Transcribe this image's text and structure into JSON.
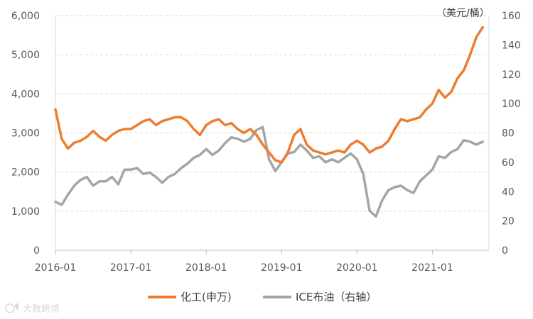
{
  "chart_data": {
    "type": "line",
    "title": "",
    "right_axis_unit": "（美元/桶）",
    "x_ticks": [
      "2016-01",
      "2017-01",
      "2018-01",
      "2019-01",
      "2020-01",
      "2021-01"
    ],
    "x_range": [
      "2016-01",
      "2021-09"
    ],
    "y_left": {
      "min": 0,
      "max": 6000,
      "ticks": [
        "0",
        "1,000",
        "2,000",
        "3,000",
        "4,000",
        "5,000",
        "6,000"
      ]
    },
    "y_right": {
      "min": 0,
      "max": 160,
      "ticks": [
        "0",
        "20",
        "40",
        "60",
        "80",
        "100",
        "120",
        "140",
        "160"
      ]
    },
    "grid": "horizontal",
    "legend_position": "bottom",
    "series": [
      {
        "name": "化工(申万)",
        "axis": "left",
        "color": "#ED7D31",
        "points": [
          [
            "2016-01",
            3600
          ],
          [
            "2016-02",
            2850
          ],
          [
            "2016-03",
            2600
          ],
          [
            "2016-04",
            2750
          ],
          [
            "2016-05",
            2800
          ],
          [
            "2016-06",
            2900
          ],
          [
            "2016-07",
            3050
          ],
          [
            "2016-08",
            2900
          ],
          [
            "2016-09",
            2800
          ],
          [
            "2016-10",
            2950
          ],
          [
            "2016-11",
            3050
          ],
          [
            "2016-12",
            3100
          ],
          [
            "2017-01",
            3100
          ],
          [
            "2017-02",
            3200
          ],
          [
            "2017-03",
            3300
          ],
          [
            "2017-04",
            3350
          ],
          [
            "2017-05",
            3200
          ],
          [
            "2017-06",
            3300
          ],
          [
            "2017-07",
            3350
          ],
          [
            "2017-08",
            3400
          ],
          [
            "2017-09",
            3400
          ],
          [
            "2017-10",
            3300
          ],
          [
            "2017-11",
            3100
          ],
          [
            "2017-12",
            2950
          ],
          [
            "2018-01",
            3200
          ],
          [
            "2018-02",
            3300
          ],
          [
            "2018-03",
            3350
          ],
          [
            "2018-04",
            3200
          ],
          [
            "2018-05",
            3250
          ],
          [
            "2018-06",
            3100
          ],
          [
            "2018-07",
            3000
          ],
          [
            "2018-08",
            3100
          ],
          [
            "2018-09",
            2950
          ],
          [
            "2018-10",
            2700
          ],
          [
            "2018-11",
            2500
          ],
          [
            "2018-12",
            2300
          ],
          [
            "2019-01",
            2250
          ],
          [
            "2019-02",
            2500
          ],
          [
            "2019-03",
            2950
          ],
          [
            "2019-04",
            3100
          ],
          [
            "2019-05",
            2700
          ],
          [
            "2019-06",
            2550
          ],
          [
            "2019-07",
            2500
          ],
          [
            "2019-08",
            2450
          ],
          [
            "2019-09",
            2500
          ],
          [
            "2019-10",
            2550
          ],
          [
            "2019-11",
            2500
          ],
          [
            "2019-12",
            2700
          ],
          [
            "2020-01",
            2800
          ],
          [
            "2020-02",
            2700
          ],
          [
            "2020-03",
            2500
          ],
          [
            "2020-04",
            2600
          ],
          [
            "2020-05",
            2650
          ],
          [
            "2020-06",
            2800
          ],
          [
            "2020-07",
            3100
          ],
          [
            "2020-08",
            3350
          ],
          [
            "2020-09",
            3300
          ],
          [
            "2020-10",
            3350
          ],
          [
            "2020-11",
            3400
          ],
          [
            "2020-12",
            3600
          ],
          [
            "2021-01",
            3750
          ],
          [
            "2021-02",
            4100
          ],
          [
            "2021-03",
            3900
          ],
          [
            "2021-04",
            4050
          ],
          [
            "2021-05",
            4400
          ],
          [
            "2021-06",
            4600
          ],
          [
            "2021-07",
            5000
          ],
          [
            "2021-08",
            5450
          ],
          [
            "2021-09",
            5700
          ]
        ]
      },
      {
        "name": "ICE布油（右轴）",
        "axis": "right",
        "color": "#A5A5A5",
        "points": [
          [
            "2016-01",
            33
          ],
          [
            "2016-02",
            31
          ],
          [
            "2016-03",
            38
          ],
          [
            "2016-04",
            44
          ],
          [
            "2016-05",
            48
          ],
          [
            "2016-06",
            50
          ],
          [
            "2016-07",
            44
          ],
          [
            "2016-08",
            47
          ],
          [
            "2016-09",
            47
          ],
          [
            "2016-10",
            50
          ],
          [
            "2016-11",
            45
          ],
          [
            "2016-12",
            55
          ],
          [
            "2017-01",
            55
          ],
          [
            "2017-02",
            56
          ],
          [
            "2017-03",
            52
          ],
          [
            "2017-04",
            53
          ],
          [
            "2017-05",
            50
          ],
          [
            "2017-06",
            46
          ],
          [
            "2017-07",
            50
          ],
          [
            "2017-08",
            52
          ],
          [
            "2017-09",
            56
          ],
          [
            "2017-10",
            59
          ],
          [
            "2017-11",
            63
          ],
          [
            "2017-12",
            65
          ],
          [
            "2018-01",
            69
          ],
          [
            "2018-02",
            65
          ],
          [
            "2018-03",
            68
          ],
          [
            "2018-04",
            73
          ],
          [
            "2018-05",
            77
          ],
          [
            "2018-06",
            76
          ],
          [
            "2018-07",
            74
          ],
          [
            "2018-08",
            76
          ],
          [
            "2018-09",
            82
          ],
          [
            "2018-10",
            84
          ],
          [
            "2018-11",
            62
          ],
          [
            "2018-12",
            54
          ],
          [
            "2019-01",
            60
          ],
          [
            "2019-02",
            66
          ],
          [
            "2019-03",
            67
          ],
          [
            "2019-04",
            72
          ],
          [
            "2019-05",
            68
          ],
          [
            "2019-06",
            63
          ],
          [
            "2019-07",
            64
          ],
          [
            "2019-08",
            60
          ],
          [
            "2019-09",
            62
          ],
          [
            "2019-10",
            60
          ],
          [
            "2019-11",
            63
          ],
          [
            "2019-12",
            66
          ],
          [
            "2020-01",
            62
          ],
          [
            "2020-02",
            52
          ],
          [
            "2020-03",
            27
          ],
          [
            "2020-04",
            23
          ],
          [
            "2020-05",
            34
          ],
          [
            "2020-06",
            41
          ],
          [
            "2020-07",
            43
          ],
          [
            "2020-08",
            44
          ],
          [
            "2020-09",
            41
          ],
          [
            "2020-10",
            39
          ],
          [
            "2020-11",
            47
          ],
          [
            "2020-12",
            51
          ],
          [
            "2021-01",
            55
          ],
          [
            "2021-02",
            64
          ],
          [
            "2021-03",
            63
          ],
          [
            "2021-04",
            67
          ],
          [
            "2021-05",
            69
          ],
          [
            "2021-06",
            75
          ],
          [
            "2021-07",
            74
          ],
          [
            "2021-08",
            72
          ],
          [
            "2021-09",
            74
          ]
        ]
      }
    ]
  },
  "watermark": "大数跨境"
}
